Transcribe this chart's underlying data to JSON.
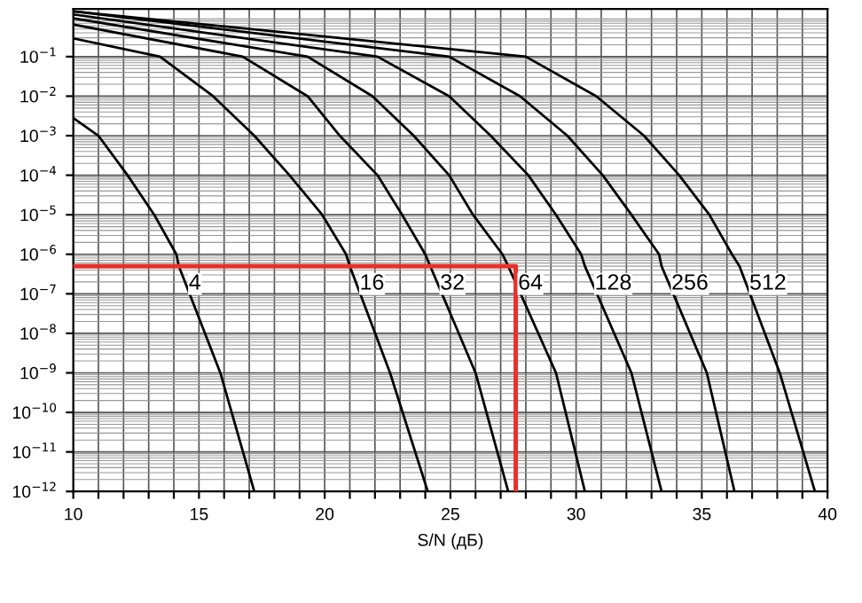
{
  "chart_data": {
    "type": "line",
    "xlabel": "S/N (дБ)",
    "log": "y",
    "grid": true,
    "marker": "none",
    "line_style": "solid",
    "xlim": [
      10,
      40
    ],
    "ylim": [
      1e-12,
      1.6
    ],
    "xticks": [
      10,
      {
        "value": 11,
        "label": null
      },
      {
        "value": 12,
        "label": null
      },
      {
        "value": 13,
        "label": null
      },
      {
        "value": 14,
        "label": null
      },
      15,
      {
        "value": 16,
        "label": null
      },
      {
        "value": 17,
        "label": null
      },
      {
        "value": 18,
        "label": null
      },
      {
        "value": 19,
        "label": null
      },
      20,
      {
        "value": 21,
        "label": null
      },
      {
        "value": 22,
        "label": null
      },
      {
        "value": 23,
        "label": null
      },
      {
        "value": 24,
        "label": null
      },
      25,
      {
        "value": 26,
        "label": null
      },
      {
        "value": 27,
        "label": null
      },
      {
        "value": 28,
        "label": null
      },
      {
        "value": 29,
        "label": null
      },
      30,
      {
        "value": 31,
        "label": null
      },
      {
        "value": 32,
        "label": null
      },
      {
        "value": 33,
        "label": null
      },
      {
        "value": 34,
        "label": null
      },
      35,
      {
        "value": 36,
        "label": null
      },
      {
        "value": 37,
        "label": null
      },
      {
        "value": 38,
        "label": null
      },
      {
        "value": 39,
        "label": null
      },
      40
    ],
    "yticks": [
      {
        "value": 1e-12,
        "label": "10$^{−12}$"
      },
      {
        "value": 1e-11,
        "label": "10$^{−11}$"
      },
      {
        "value": 1e-10,
        "label": "10$^{−10}$"
      },
      {
        "value": 1e-09,
        "label": "10$^{−9}$"
      },
      {
        "value": 1e-08,
        "label": "10$^{−8}$"
      },
      {
        "value": 1e-07,
        "label": "10$^{−7}$"
      },
      {
        "value": 1e-06,
        "label": "10$^{−6}$"
      },
      {
        "value": 1e-05,
        "label": "10$^{−5}$"
      },
      {
        "value": 0.0001,
        "label": "10$^{−4}$"
      },
      {
        "value": 0.001,
        "label": "10$^{−3}$"
      },
      {
        "value": 0.01,
        "label": "10$^{−2}$"
      },
      {
        "value": 0.1,
        "label": "10$^{−1}$"
      }
    ],
    "series": [
      {
        "name": "4",
        "color": "#000000",
        "x": [
          10,
          11.0,
          12.16,
          13.22,
          14.1,
          14.2,
          15.85,
          17.2
        ],
        "values": [
          0.0028,
          0.001,
          0.0001,
          1e-05,
          1e-06,
          5e-07,
          1e-09,
          1e-12
        ]
      },
      {
        "name": "16",
        "color": "#000000",
        "x": [
          10,
          13.45,
          15.56,
          17.2,
          18.6,
          19.9,
          20.85,
          21.0,
          22.6,
          24.1
        ],
        "values": [
          0.29,
          0.1,
          0.01,
          0.001,
          0.0001,
          1e-05,
          1e-06,
          5e-07,
          1e-09,
          1e-12
        ]
      },
      {
        "name": "32",
        "color": "#000000",
        "x": [
          10,
          16.74,
          19.32,
          20.6,
          22.1,
          23.08,
          24.0,
          24.2,
          26.0,
          27.3
        ],
        "values": [
          0.65,
          0.1,
          0.01,
          0.001,
          0.0001,
          1e-05,
          1e-06,
          5e-07,
          1e-09,
          1e-12
        ]
      },
      {
        "name": "64",
        "color": "#000000",
        "x": [
          10,
          19.32,
          21.9,
          23.54,
          24.95,
          25.9,
          27.07,
          27.3,
          29.2,
          30.35
        ],
        "values": [
          0.93,
          0.1,
          0.01,
          0.001,
          0.0001,
          1e-05,
          1e-06,
          5e-07,
          1e-09,
          1e-12
        ]
      },
      {
        "name": "128",
        "color": "#000000",
        "x": [
          10,
          22.1,
          24.95,
          26.6,
          28.1,
          29.2,
          30.2,
          30.35,
          32.2,
          33.4
        ],
        "values": [
          1.17,
          0.1,
          0.01,
          0.001,
          0.0001,
          1e-05,
          1e-06,
          5e-07,
          1e-09,
          1e-12
        ]
      },
      {
        "name": "256",
        "color": "#000000",
        "x": [
          10,
          24.95,
          27.77,
          29.65,
          31.06,
          32.2,
          33.3,
          33.4,
          35.2,
          36.3
        ],
        "values": [
          1.4,
          0.1,
          0.01,
          0.001,
          0.0001,
          1e-05,
          1e-06,
          5e-07,
          1e-09,
          1e-12
        ]
      },
      {
        "name": "512",
        "color": "#000000",
        "x": [
          10,
          28.0,
          30.8,
          32.7,
          34.1,
          35.3,
          36.2,
          36.5,
          38.1,
          39.5
        ],
        "values": [
          1.4,
          0.1,
          0.01,
          0.001,
          0.0001,
          1e-05,
          1e-06,
          5e-07,
          1e-09,
          1e-12
        ]
      },
      {
        "color": "#e8302c",
        "x": [
          10,
          27.6,
          27.6
        ],
        "values": [
          5e-07,
          5e-07,
          1e-12
        ]
      }
    ]
  }
}
